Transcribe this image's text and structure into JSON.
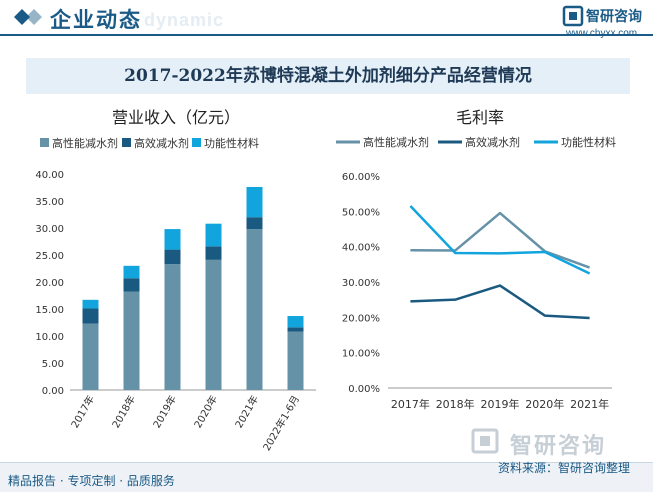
{
  "header": {
    "title": "企业动态",
    "ghost_text": "te dynamic",
    "brand_name": "智研咨询",
    "brand_url": "www.chyxx.com"
  },
  "banner": {
    "title": "2017-2022年苏博特混凝土外加剂细分产品经营情况"
  },
  "footer": {
    "left": "精品报告 · 专项定制 · 品质服务",
    "source": "资料来源：智研咨询整理",
    "watermark_brand": "智研咨询"
  },
  "colors": {
    "brand": "#1a5a86",
    "series_high_perf": "#6692a8",
    "series_high_eff": "#1b5a80",
    "series_functional": "#12a5dd"
  },
  "chart_data": [
    {
      "type": "bar",
      "stacked": true,
      "title": "营业收入（亿元）",
      "categories": [
        "2017年",
        "2018年",
        "2019年",
        "2020年",
        "2021年",
        "2022年1-6月"
      ],
      "series": [
        {
          "name": "高性能减水剂",
          "color": "#6692a8",
          "values": [
            12.3,
            18.2,
            23.3,
            24.1,
            29.8,
            10.8
          ]
        },
        {
          "name": "高效减水剂",
          "color": "#1b5a80",
          "values": [
            2.8,
            2.5,
            2.7,
            2.5,
            2.2,
            0.8
          ]
        },
        {
          "name": "功能性材料",
          "color": "#12a5dd",
          "values": [
            1.6,
            2.3,
            3.8,
            4.2,
            5.6,
            2.1
          ]
        }
      ],
      "ylim": [
        0,
        40
      ],
      "yticks": [
        "0.00",
        "5.00",
        "10.00",
        "15.00",
        "20.00",
        "25.00",
        "30.00",
        "35.00",
        "40.00"
      ],
      "grid": false,
      "legend": "top"
    },
    {
      "type": "line",
      "title": "毛利率",
      "categories": [
        "2017年",
        "2018年",
        "2019年",
        "2020年",
        "2021年"
      ],
      "series": [
        {
          "name": "高性能减水剂",
          "color": "#6692a8",
          "values": [
            39.0,
            38.9,
            49.5,
            38.7,
            34.1
          ]
        },
        {
          "name": "高效减水剂",
          "color": "#1b5a80",
          "values": [
            24.5,
            25.0,
            29.0,
            20.5,
            19.8
          ]
        },
        {
          "name": "功能性材料",
          "color": "#12a5dd",
          "values": [
            51.5,
            38.2,
            38.1,
            38.5,
            32.4
          ]
        }
      ],
      "ylim": [
        0,
        60
      ],
      "yticks": [
        "0.00%",
        "10.00%",
        "20.00%",
        "30.00%",
        "40.00%",
        "50.00%",
        "60.00%"
      ],
      "grid": false,
      "legend": "top"
    }
  ]
}
